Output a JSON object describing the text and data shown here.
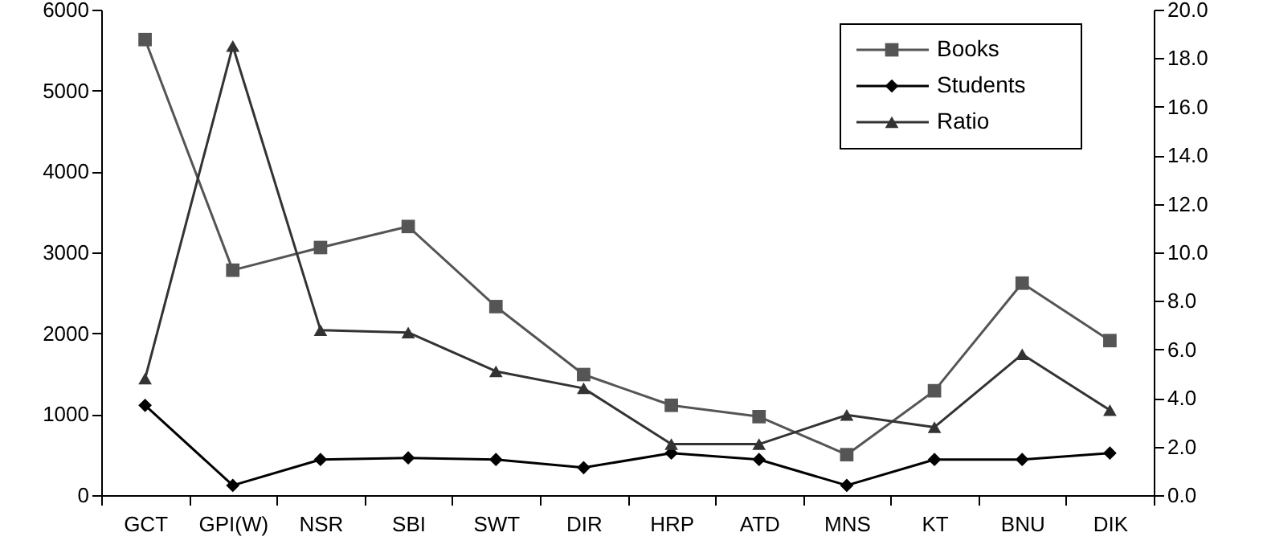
{
  "chart_data": {
    "type": "line",
    "categories": [
      "GCT",
      "GPI(W)",
      "NSR",
      "SBI",
      "SWT",
      "DIR",
      "HRP",
      "ATD",
      "MNS",
      "KT",
      "BNU",
      "DIK"
    ],
    "series": [
      {
        "name": "Books",
        "color": "#555555",
        "marker": "square",
        "values": [
          5630,
          2780,
          3060,
          3320,
          2330,
          1490,
          1110,
          970,
          500,
          1290,
          2620,
          1910
        ]
      },
      {
        "name": "Students",
        "color": "#000000",
        "marker": "diamond",
        "values": [
          1110,
          120,
          440,
          460,
          440,
          340,
          520,
          440,
          120,
          440,
          440,
          520
        ]
      },
      {
        "name": "Ratio",
        "color": "#333333",
        "marker": "triangle",
        "axis": "y2",
        "values": [
          4.8,
          18.5,
          6.8,
          6.7,
          5.1,
          4.4,
          2.1,
          2.1,
          3.3,
          2.8,
          5.8,
          3.5
        ]
      }
    ],
    "ylim": [
      0,
      6000
    ],
    "yticks": [
      0,
      1000,
      2000,
      3000,
      4000,
      5000,
      6000
    ],
    "y2lim": [
      0,
      20
    ],
    "y2ticks": [
      {
        "value": 0,
        "label": "0.0"
      },
      {
        "value": 2,
        "label": "2.0"
      },
      {
        "value": 4,
        "label": "4.0"
      },
      {
        "value": 6,
        "label": "6.0"
      },
      {
        "value": 8,
        "label": "8.0"
      },
      {
        "value": 10,
        "label": "10.0"
      },
      {
        "value": 12,
        "label": "12.0"
      },
      {
        "value": 14,
        "label": "14.0"
      },
      {
        "value": 16,
        "label": "16.0"
      },
      {
        "value": 18,
        "label": "18.0"
      },
      {
        "value": 20,
        "label": "20.0"
      }
    ],
    "grid": false,
    "legend": "top right",
    "line_style": "solid"
  }
}
